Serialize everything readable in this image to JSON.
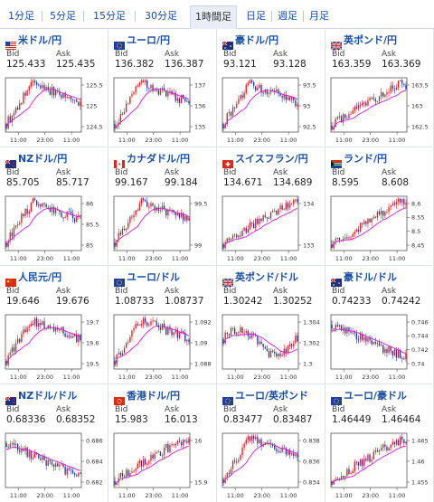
{
  "tabs": [
    {
      "label": "1分足",
      "active": false
    },
    {
      "label": "5分足",
      "active": false
    },
    {
      "label": "15分足",
      "active": false
    },
    {
      "label": "30分足",
      "active": false
    },
    {
      "label": "1時間足",
      "active": true
    },
    {
      "label": "日足",
      "active": false
    },
    {
      "label": "週足",
      "active": false
    },
    {
      "label": "月足",
      "active": false
    }
  ],
  "labels": {
    "bid": "Bid",
    "ask": "Ask"
  },
  "colors": {
    "up": "#e0201c",
    "down": "#1f3d9e",
    "ma": "#d41ad8",
    "link": "#1a4fa0"
  },
  "pairs": [
    {
      "name": "米ドル/円",
      "flag": "us-flag",
      "bid": "125.433",
      "ask": "125.435",
      "yticks": [
        "125.5",
        "125",
        "124.5"
      ],
      "xticks": [
        "11:00",
        "23:00",
        "11:00"
      ],
      "shape": "bump"
    },
    {
      "name": "ユーロ/円",
      "flag": "eu-flag",
      "bid": "136.382",
      "ask": "136.387",
      "yticks": [
        "137",
        "136",
        "135"
      ],
      "xticks": [
        "11:00",
        "23:00",
        "11:00"
      ],
      "shape": "bump"
    },
    {
      "name": "豪ドル/円",
      "flag": "au-flag",
      "bid": "93.121",
      "ask": "93.128",
      "yticks": [
        "93.5",
        "93",
        "92.5"
      ],
      "xticks": [
        "11:00",
        "23:00",
        "11:00"
      ],
      "shape": "bump"
    },
    {
      "name": "英ポンド/円",
      "flag": "gb-flag",
      "bid": "163.359",
      "ask": "163.369",
      "yticks": [
        "163.5",
        "163",
        "162.5"
      ],
      "xticks": [
        "11:00",
        "23:00",
        "11:00"
      ],
      "shape": "rise"
    },
    {
      "name": "NZドル/円",
      "flag": "nz-flag",
      "bid": "85.705",
      "ask": "85.717",
      "yticks": [
        "86",
        "85.5",
        "85"
      ],
      "xticks": [
        "11:00",
        "23:00",
        "11:00"
      ],
      "shape": "bump"
    },
    {
      "name": "カナダドル/円",
      "flag": "ca-flag",
      "bid": "99.167",
      "ask": "99.184",
      "yticks": [
        "99.5",
        "99"
      ],
      "xticks": [
        "11:00",
        "23:00",
        "11:00"
      ],
      "shape": "bump"
    },
    {
      "name": "スイスフラン/円",
      "flag": "ch-flag",
      "bid": "134.671",
      "ask": "134.689",
      "yticks": [
        "134",
        "133"
      ],
      "xticks": [
        "11:00",
        "23:00",
        "11:00"
      ],
      "shape": "rise"
    },
    {
      "name": "ランド/円",
      "flag": "za-flag",
      "bid": "8.595",
      "ask": "8.608",
      "yticks": [
        "8.6",
        "8.55",
        "8.5",
        "8.45"
      ],
      "xticks": [
        "11:00",
        "23:00",
        "11:00"
      ],
      "shape": "rise"
    },
    {
      "name": "人民元/円",
      "flag": "cn-flag",
      "bid": "19.646",
      "ask": "19.676",
      "yticks": [
        "19.7",
        "19.6",
        "19.5"
      ],
      "xticks": [
        "11:00",
        "23:00",
        "11:00"
      ],
      "shape": "bump"
    },
    {
      "name": "ユーロ/ドル",
      "flag": "eu-flag",
      "bid": "1.08733",
      "ask": "1.08737",
      "yticks": [
        "1.092",
        "1.09",
        "1.088"
      ],
      "xticks": [
        "11:00",
        "23:00",
        "11:00"
      ],
      "shape": "bump"
    },
    {
      "name": "英ポンド/ドル",
      "flag": "gb-flag",
      "bid": "1.30242",
      "ask": "1.30252",
      "yticks": [
        "1.304",
        "1.302",
        "1.3"
      ],
      "xticks": [
        "11:00",
        "23:00",
        "11:00"
      ],
      "shape": "flat"
    },
    {
      "name": "豪ドル/ドル",
      "flag": "au-flag",
      "bid": "0.74233",
      "ask": "0.74242",
      "yticks": [
        "0.746",
        "0.744",
        "0.742",
        "0.74"
      ],
      "xticks": [
        "11:00",
        "23:00",
        "11:00"
      ],
      "shape": "fall"
    },
    {
      "name": "NZドル/ドル",
      "flag": "nz-flag",
      "bid": "0.68336",
      "ask": "0.68352",
      "yticks": [
        "0.686",
        "0.684",
        "0.682"
      ],
      "xticks": [
        "11:00",
        "23:00",
        "11:00"
      ],
      "shape": "fall"
    },
    {
      "name": "香港ドル/円",
      "flag": "hk-flag",
      "bid": "15.983",
      "ask": "16.013",
      "yticks": [
        "16",
        "15.9"
      ],
      "xticks": [
        "11:00",
        "23:00",
        "11:00"
      ],
      "shape": "rise"
    },
    {
      "name": "ユーロ/英ポンド",
      "flag": "eu-flag",
      "bid": "0.83477",
      "ask": "0.83487",
      "yticks": [
        "0.838",
        "0.836",
        "0.834"
      ],
      "xticks": [
        "11:00",
        "23:00",
        "11:00"
      ],
      "shape": "bump"
    },
    {
      "name": "ユーロ/豪ドル",
      "flag": "eu-flag",
      "bid": "1.46449",
      "ask": "1.46464",
      "yticks": [
        "1.465",
        "1.46",
        "1.455"
      ],
      "xticks": [
        "11:00",
        "23:00",
        "11:00"
      ],
      "shape": "rise"
    }
  ]
}
